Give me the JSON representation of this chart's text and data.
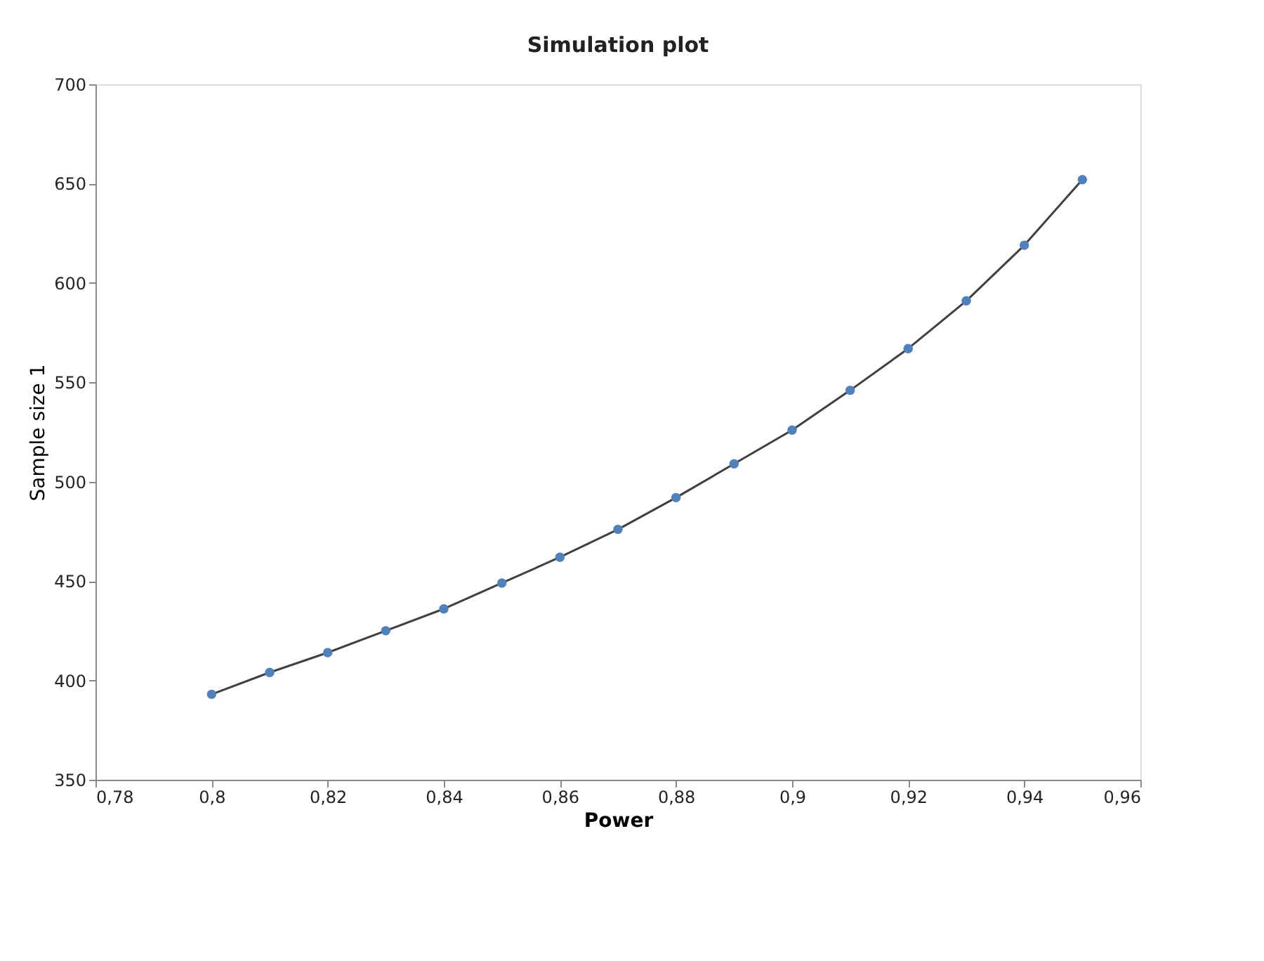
{
  "chart_data": {
    "type": "line",
    "title": "Simulation plot",
    "xlabel": "Power",
    "ylabel": "Sample size 1",
    "x": [
      0.8,
      0.81,
      0.82,
      0.83,
      0.84,
      0.85,
      0.86,
      0.87,
      0.88,
      0.89,
      0.9,
      0.91,
      0.92,
      0.93,
      0.94,
      0.95
    ],
    "series": [
      {
        "color": "#404040",
        "marker": "none",
        "line_style": "solid",
        "values": [
          393,
          404,
          414,
          425,
          436,
          449,
          462,
          476,
          492,
          509,
          526,
          546,
          567,
          591,
          619,
          652
        ]
      },
      {
        "type": "scatter",
        "color": "#4f81bd",
        "marker": "circle",
        "values": [
          393,
          404,
          414,
          425,
          436,
          449,
          462,
          476,
          492,
          509,
          526,
          546,
          567,
          591,
          619,
          652
        ]
      }
    ],
    "xlim": [
      0.78,
      0.96
    ],
    "xticks": [
      {
        "value": 0.78,
        "label": "0,78"
      },
      {
        "value": 0.8,
        "label": "0,8"
      },
      {
        "value": 0.82,
        "label": "0,82"
      },
      {
        "value": 0.84,
        "label": "0,84"
      },
      {
        "value": 0.86,
        "label": "0,86"
      },
      {
        "value": 0.88,
        "label": "0,88"
      },
      {
        "value": 0.9,
        "label": "0,9"
      },
      {
        "value": 0.92,
        "label": "0,92"
      },
      {
        "value": 0.94,
        "label": "0,94"
      },
      {
        "value": 0.96,
        "label": "0,96"
      }
    ],
    "ylim": [
      350,
      700
    ],
    "yticks": [
      350,
      400,
      450,
      500,
      550,
      600,
      650,
      700
    ],
    "grid": false
  }
}
